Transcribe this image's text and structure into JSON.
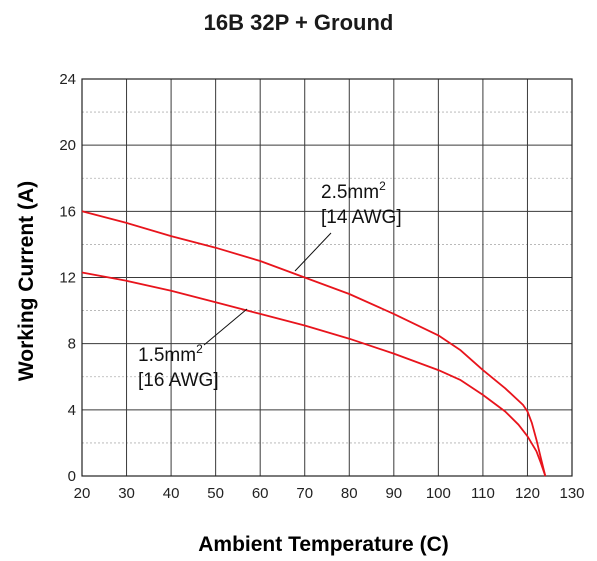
{
  "chart_data": {
    "type": "line",
    "title": "16B 32P + Ground",
    "xlabel": "Ambient Temperature (C)",
    "ylabel": "Working Current (A)",
    "xlim": [
      20,
      130
    ],
    "ylim": [
      0,
      24
    ],
    "xticks": [
      20,
      30,
      40,
      50,
      60,
      70,
      80,
      90,
      100,
      110,
      120,
      130
    ],
    "yticks": [
      0,
      4,
      8,
      12,
      16,
      20,
      24
    ],
    "grid": true,
    "line_color": "#e8141c",
    "series": [
      {
        "label_lines": [
          "2.5mm",
          "[14 AWG]"
        ],
        "superscript": "2",
        "x": [
          20,
          30,
          40,
          50,
          60,
          70,
          80,
          90,
          100,
          105,
          110,
          115,
          119,
          120,
          121,
          122,
          123,
          124
        ],
        "y": [
          16.0,
          15.3,
          14.5,
          13.8,
          13.0,
          12.0,
          11.0,
          9.8,
          8.5,
          7.6,
          6.4,
          5.3,
          4.3,
          3.9,
          3.2,
          2.2,
          1.1,
          0.0
        ]
      },
      {
        "label_lines": [
          "1.5mm",
          "[16 AWG]"
        ],
        "superscript": "2",
        "x": [
          20,
          30,
          40,
          50,
          60,
          70,
          80,
          90,
          100,
          105,
          110,
          115,
          118,
          120,
          122,
          123,
          124
        ],
        "y": [
          12.3,
          11.8,
          11.2,
          10.5,
          9.8,
          9.1,
          8.3,
          7.4,
          6.4,
          5.8,
          4.9,
          3.9,
          3.1,
          2.4,
          1.5,
          0.8,
          0.0
        ]
      }
    ]
  }
}
